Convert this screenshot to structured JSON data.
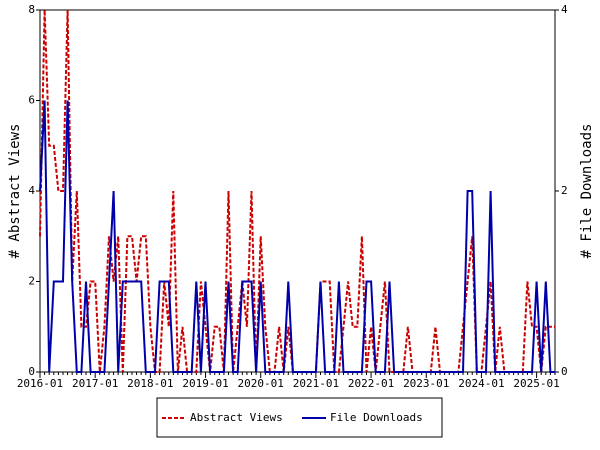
{
  "chart_data": {
    "type": "line",
    "categories": [
      "2016-01",
      null,
      null,
      null,
      null,
      null,
      null,
      null,
      null,
      null,
      null,
      null,
      "2017-01",
      null,
      null,
      null,
      null,
      null,
      null,
      null,
      null,
      null,
      null,
      null,
      "2018-01",
      null,
      null,
      null,
      null,
      null,
      null,
      null,
      null,
      null,
      null,
      null,
      "2019-01",
      null,
      null,
      null,
      null,
      null,
      null,
      null,
      null,
      null,
      null,
      null,
      "2020-01",
      null,
      null,
      null,
      null,
      null,
      null,
      null,
      null,
      null,
      null,
      null,
      "2021-01",
      null,
      null,
      null,
      null,
      null,
      null,
      null,
      null,
      null,
      null,
      null,
      "2022-01",
      null,
      null,
      null,
      null,
      null,
      null,
      null,
      null,
      null,
      null,
      null,
      "2023-01",
      null,
      null,
      null,
      null,
      null,
      null,
      null,
      null,
      null,
      null,
      null,
      "2024-01",
      null,
      null,
      null,
      null,
      null,
      null,
      null,
      null,
      null,
      null,
      null,
      "2025-01",
      null,
      null,
      null,
      null
    ],
    "series": [
      {
        "name": "Abstract Views",
        "color": "#cc0000",
        "dash": true,
        "axis": "y",
        "values": [
          3,
          8,
          5,
          5,
          4,
          4,
          8,
          2,
          4,
          1,
          1,
          2,
          2,
          0,
          1,
          3,
          2,
          3,
          0,
          3,
          3,
          2,
          3,
          3,
          1,
          0,
          0,
          2,
          1,
          4,
          0,
          1,
          0,
          0,
          0,
          2,
          1,
          0,
          1,
          1,
          0,
          4,
          0,
          1,
          2,
          1,
          4,
          0,
          3,
          1,
          0,
          0,
          1,
          0,
          1,
          0,
          0,
          0,
          0,
          0,
          0,
          2,
          2,
          2,
          0,
          0,
          1,
          2,
          1,
          1,
          3,
          0,
          1,
          0,
          1,
          2,
          0,
          0,
          0,
          0,
          1,
          0,
          0,
          0,
          0,
          0,
          1,
          0,
          0,
          0,
          0,
          0,
          1,
          2,
          3,
          0,
          0,
          1,
          2,
          0,
          1,
          0,
          0,
          0,
          0,
          0,
          2,
          1,
          1,
          0,
          1,
          1,
          1
        ]
      },
      {
        "name": "File Downloads",
        "color": "#0000aa",
        "dash": false,
        "axis": "y2",
        "values": [
          2,
          3,
          0,
          1,
          1,
          1,
          3,
          1,
          0,
          0,
          1,
          0,
          0,
          0,
          0,
          1,
          2,
          0,
          1,
          1,
          1,
          1,
          1,
          0,
          0,
          0,
          1,
          1,
          1,
          0,
          0,
          0,
          0,
          0,
          1,
          0,
          1,
          0,
          0,
          0,
          0,
          1,
          0,
          0,
          1,
          1,
          1,
          0,
          1,
          0,
          0,
          0,
          0,
          0,
          1,
          0,
          0,
          0,
          0,
          0,
          0,
          1,
          0,
          0,
          0,
          1,
          0,
          0,
          0,
          0,
          0,
          1,
          1,
          0,
          0,
          0,
          1,
          0,
          0,
          0,
          0,
          0,
          0,
          0,
          0,
          0,
          0,
          0,
          0,
          0,
          0,
          0,
          0,
          2,
          2,
          0,
          0,
          0,
          2,
          0,
          0,
          0,
          0,
          0,
          0,
          0,
          0,
          0,
          1,
          0,
          1,
          0,
          0
        ]
      }
    ],
    "y_label": "# Abstract Views",
    "y2_label": "# File Downloads",
    "ylim": [
      0,
      8
    ],
    "yticks": [
      0,
      2,
      4,
      6,
      8
    ],
    "y2lim": [
      0,
      4
    ],
    "y2ticks": [
      0,
      2,
      4
    ],
    "legend": "bottom"
  }
}
